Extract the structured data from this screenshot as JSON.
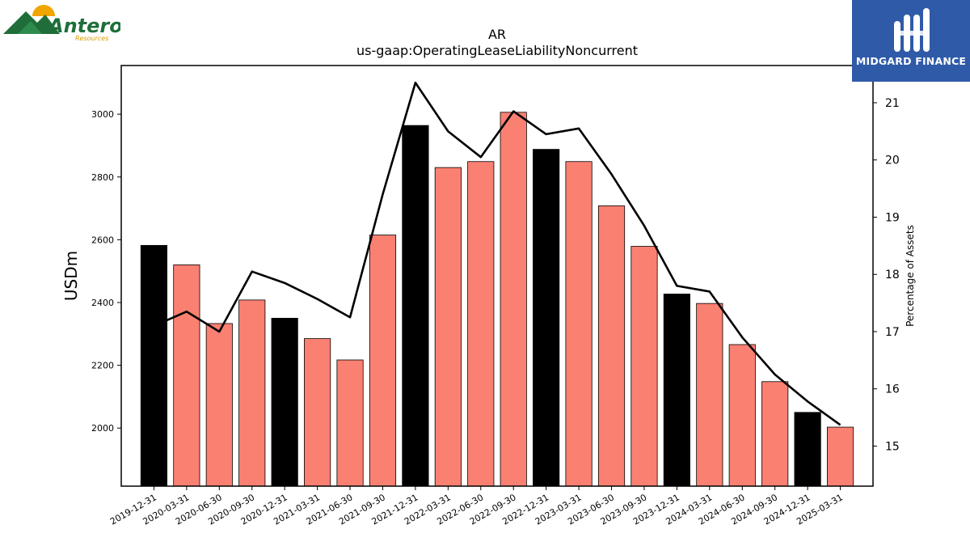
{
  "logos": {
    "left_name": "Antero",
    "left_sub": "Resources",
    "right_name": "MIDGARD FINANCE"
  },
  "colors": {
    "annual_bar": "#000000",
    "quarter_bar": "#fa8072",
    "line": "#000000"
  },
  "chart_data": {
    "type": "bar",
    "title": "AR",
    "subtitle": "us-gaap:OperatingLeaseLiabilityNoncurrent",
    "ylabel": "USDm",
    "y2label": "Percentage of Assets",
    "categories": [
      "2019-12-31",
      "2020-03-31",
      "2020-06-30",
      "2020-09-30",
      "2020-12-31",
      "2021-03-31",
      "2021-06-30",
      "2021-09-30",
      "2021-12-31",
      "2022-03-31",
      "2022-06-30",
      "2022-09-30",
      "2022-12-31",
      "2023-03-31",
      "2023-06-30",
      "2023-09-30",
      "2023-12-31",
      "2024-03-31",
      "2024-06-30",
      "2024-09-30",
      "2024-12-31",
      "2025-03-31"
    ],
    "series": [
      {
        "type": "bar",
        "values": [
          2582,
          2520,
          2333,
          2408,
          2350,
          2285,
          2217,
          2615,
          2964,
          2830,
          2849,
          3006,
          2888,
          2849,
          2708,
          2579,
          2427,
          2397,
          2266,
          2148,
          2050,
          2003
        ]
      },
      {
        "type": "line",
        "axis": "right",
        "values": [
          17.1,
          17.35,
          17.0,
          18.05,
          17.85,
          17.57,
          17.25,
          19.4,
          21.35,
          20.5,
          20.05,
          20.85,
          20.45,
          20.55,
          19.75,
          18.85,
          17.8,
          17.7,
          16.9,
          16.25,
          15.78,
          15.37
        ]
      }
    ],
    "bar_kind": [
      "annual",
      "quarter",
      "quarter",
      "quarter",
      "annual",
      "quarter",
      "quarter",
      "quarter",
      "annual",
      "quarter",
      "quarter",
      "quarter",
      "annual",
      "quarter",
      "quarter",
      "quarter",
      "annual",
      "quarter",
      "quarter",
      "quarter",
      "annual",
      "quarter"
    ],
    "ylim": [
      1815,
      3155
    ],
    "y2lim": [
      14.3,
      21.65
    ],
    "yticks": [
      2000,
      2200,
      2400,
      2600,
      2800,
      3000
    ],
    "y2ticks": [
      15,
      16,
      17,
      18,
      19,
      20,
      21
    ],
    "grid": false
  }
}
